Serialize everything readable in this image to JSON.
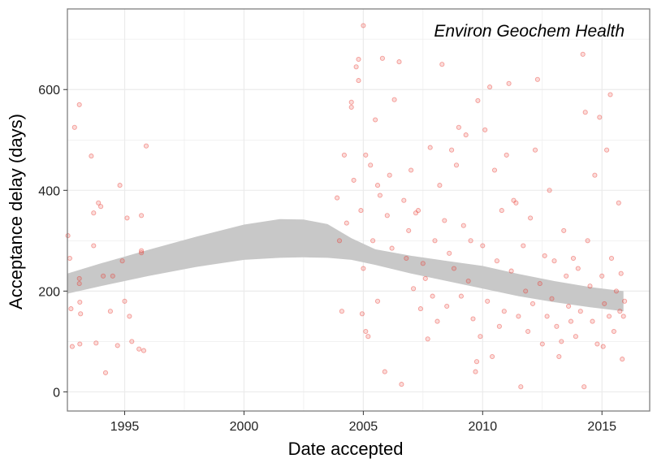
{
  "chart_data": {
    "type": "scatter",
    "title": "",
    "annotation": "Environ Geochem Health",
    "xlabel": "Date accepted",
    "ylabel": "Acceptance delay (days)",
    "xlim": [
      1992.6,
      2017.0
    ],
    "ylim": [
      -38,
      760
    ],
    "x_ticks": [
      1995,
      2000,
      2005,
      2010,
      2015
    ],
    "x_tick_labels": [
      "1995",
      "2000",
      "2005",
      "2010",
      "2015"
    ],
    "y_ticks": [
      0,
      200,
      400,
      600
    ],
    "y_tick_labels": [
      "0",
      "200",
      "400",
      "600"
    ],
    "grid": true,
    "colors": {
      "points": "#e8382f",
      "ribbon": "#c8c8c8",
      "grid": "#ebebeb",
      "panel_border": "#7f7f7f"
    },
    "smooth_band": {
      "x": [
        1992.6,
        1994,
        1996,
        1998,
        2000,
        2001.5,
        2002.5,
        2003.5,
        2004.5,
        2005.5,
        2007,
        2008.5,
        2010,
        2011.5,
        2013,
        2014.5,
        2015.9
      ],
      "lower": [
        195,
        210,
        230,
        248,
        262,
        266,
        267,
        266,
        262,
        252,
        235,
        220,
        205,
        190,
        178,
        168,
        160
      ],
      "upper": [
        235,
        255,
        282,
        308,
        332,
        343,
        342,
        333,
        305,
        283,
        270,
        260,
        250,
        234,
        220,
        208,
        200
      ]
    },
    "points": [
      [
        1992.62,
        310
      ],
      [
        1992.7,
        265
      ],
      [
        1992.75,
        165
      ],
      [
        1992.8,
        90
      ],
      [
        1992.9,
        525
      ],
      [
        1993.1,
        570
      ],
      [
        1993.1,
        225
      ],
      [
        1993.1,
        215
      ],
      [
        1993.12,
        178
      ],
      [
        1993.15,
        155
      ],
      [
        1993.12,
        95
      ],
      [
        1993.6,
        468
      ],
      [
        1993.7,
        355
      ],
      [
        1993.7,
        290
      ],
      [
        1993.8,
        97
      ],
      [
        1993.9,
        375
      ],
      [
        1994.0,
        368
      ],
      [
        1994.1,
        230
      ],
      [
        1994.2,
        38
      ],
      [
        1994.4,
        160
      ],
      [
        1994.5,
        230
      ],
      [
        1994.7,
        92
      ],
      [
        1994.8,
        410
      ],
      [
        1994.9,
        260
      ],
      [
        1995.0,
        180
      ],
      [
        1995.1,
        345
      ],
      [
        1995.2,
        150
      ],
      [
        1995.3,
        100
      ],
      [
        1995.6,
        85
      ],
      [
        1995.7,
        350
      ],
      [
        1995.7,
        280
      ],
      [
        1995.7,
        276
      ],
      [
        1995.8,
        82
      ],
      [
        1995.9,
        488
      ],
      [
        2003.9,
        385
      ],
      [
        2004.0,
        300
      ],
      [
        2004.1,
        160
      ],
      [
        2004.2,
        470
      ],
      [
        2004.3,
        335
      ],
      [
        2004.5,
        575
      ],
      [
        2004.5,
        565
      ],
      [
        2004.6,
        420
      ],
      [
        2004.7,
        645
      ],
      [
        2004.8,
        660
      ],
      [
        2004.8,
        618
      ],
      [
        2004.9,
        360
      ],
      [
        2004.95,
        155
      ],
      [
        2005.0,
        727
      ],
      [
        2005.0,
        245
      ],
      [
        2005.1,
        470
      ],
      [
        2005.1,
        120
      ],
      [
        2005.2,
        110
      ],
      [
        2005.3,
        450
      ],
      [
        2005.4,
        300
      ],
      [
        2005.5,
        540
      ],
      [
        2005.6,
        410
      ],
      [
        2005.6,
        180
      ],
      [
        2005.7,
        390
      ],
      [
        2005.8,
        662
      ],
      [
        2005.9,
        40
      ],
      [
        2006.0,
        350
      ],
      [
        2006.1,
        430
      ],
      [
        2006.2,
        285
      ],
      [
        2006.3,
        580
      ],
      [
        2006.5,
        655
      ],
      [
        2006.6,
        15
      ],
      [
        2006.7,
        380
      ],
      [
        2006.8,
        265
      ],
      [
        2006.9,
        320
      ],
      [
        2007.0,
        440
      ],
      [
        2007.1,
        205
      ],
      [
        2007.2,
        355
      ],
      [
        2007.3,
        360
      ],
      [
        2007.4,
        165
      ],
      [
        2007.5,
        255
      ],
      [
        2007.6,
        225
      ],
      [
        2007.7,
        105
      ],
      [
        2007.8,
        485
      ],
      [
        2007.9,
        190
      ],
      [
        2008.0,
        300
      ],
      [
        2008.1,
        140
      ],
      [
        2008.2,
        410
      ],
      [
        2008.3,
        650
      ],
      [
        2008.4,
        340
      ],
      [
        2008.5,
        170
      ],
      [
        2008.6,
        275
      ],
      [
        2008.7,
        480
      ],
      [
        2008.8,
        245
      ],
      [
        2008.9,
        450
      ],
      [
        2009.0,
        525
      ],
      [
        2009.1,
        190
      ],
      [
        2009.2,
        330
      ],
      [
        2009.3,
        510
      ],
      [
        2009.4,
        220
      ],
      [
        2009.5,
        300
      ],
      [
        2009.6,
        145
      ],
      [
        2009.7,
        40
      ],
      [
        2009.75,
        60
      ],
      [
        2009.8,
        578
      ],
      [
        2009.9,
        110
      ],
      [
        2010.0,
        290
      ],
      [
        2010.1,
        520
      ],
      [
        2010.2,
        180
      ],
      [
        2010.3,
        605
      ],
      [
        2010.4,
        70
      ],
      [
        2010.5,
        440
      ],
      [
        2010.6,
        260
      ],
      [
        2010.7,
        130
      ],
      [
        2010.8,
        360
      ],
      [
        2010.9,
        160
      ],
      [
        2011.0,
        470
      ],
      [
        2011.1,
        612
      ],
      [
        2011.2,
        240
      ],
      [
        2011.3,
        380
      ],
      [
        2011.4,
        375
      ],
      [
        2011.5,
        150
      ],
      [
        2011.6,
        10
      ],
      [
        2011.7,
        290
      ],
      [
        2011.8,
        200
      ],
      [
        2011.9,
        120
      ],
      [
        2012.0,
        345
      ],
      [
        2012.1,
        175
      ],
      [
        2012.2,
        480
      ],
      [
        2012.3,
        620
      ],
      [
        2012.4,
        215
      ],
      [
        2012.5,
        95
      ],
      [
        2012.6,
        270
      ],
      [
        2012.7,
        150
      ],
      [
        2012.8,
        400
      ],
      [
        2012.9,
        185
      ],
      [
        2013.0,
        260
      ],
      [
        2013.1,
        130
      ],
      [
        2013.2,
        70
      ],
      [
        2013.3,
        100
      ],
      [
        2013.4,
        320
      ],
      [
        2013.5,
        230
      ],
      [
        2013.6,
        170
      ],
      [
        2013.7,
        140
      ],
      [
        2013.8,
        265
      ],
      [
        2013.9,
        110
      ],
      [
        2014.0,
        245
      ],
      [
        2014.1,
        160
      ],
      [
        2014.2,
        670
      ],
      [
        2014.25,
        10
      ],
      [
        2014.3,
        555
      ],
      [
        2014.4,
        300
      ],
      [
        2014.5,
        210
      ],
      [
        2014.6,
        140
      ],
      [
        2014.7,
        430
      ],
      [
        2014.8,
        95
      ],
      [
        2014.9,
        545
      ],
      [
        2015.0,
        230
      ],
      [
        2015.05,
        90
      ],
      [
        2015.1,
        175
      ],
      [
        2015.2,
        480
      ],
      [
        2015.3,
        150
      ],
      [
        2015.35,
        590
      ],
      [
        2015.4,
        265
      ],
      [
        2015.5,
        120
      ],
      [
        2015.6,
        200
      ],
      [
        2015.7,
        375
      ],
      [
        2015.75,
        160
      ],
      [
        2015.8,
        235
      ],
      [
        2015.85,
        65
      ],
      [
        2015.9,
        150
      ],
      [
        2015.95,
        180
      ]
    ]
  }
}
